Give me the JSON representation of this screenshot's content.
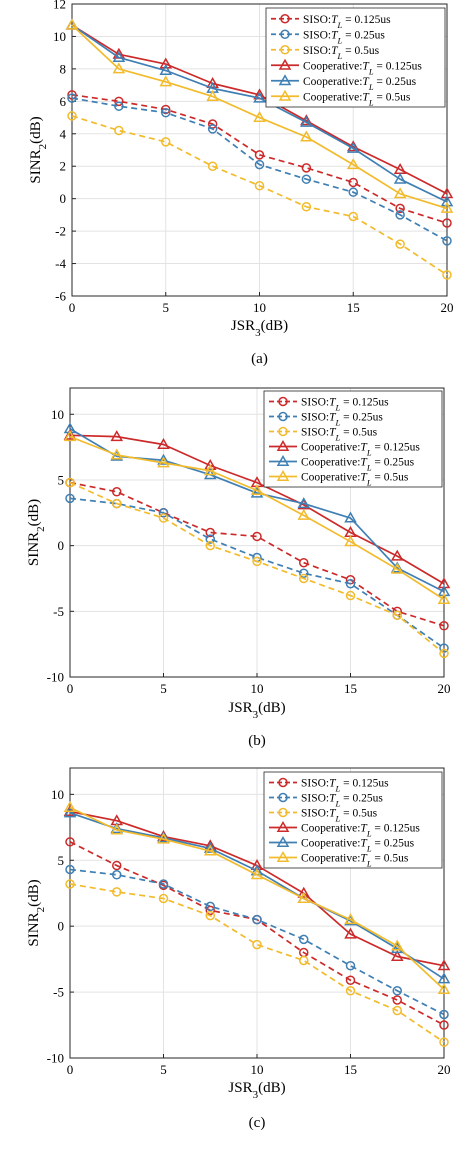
{
  "colors": {
    "red": "#cc2a2a",
    "blue": "#3f7fb3",
    "yellow": "#f2bb2c",
    "grid": "#e3e3e3"
  },
  "legend": [
    {
      "label": "SISO:T_L = 0.125us",
      "style": "dashed-circle",
      "color": "red"
    },
    {
      "label": "SISO:T_L = 0.25us",
      "style": "dashed-circle",
      "color": "blue"
    },
    {
      "label": "SISO:T_L = 0.5us",
      "style": "dashed-circle",
      "color": "yellow"
    },
    {
      "label": "Cooperative:T_L = 0.125us",
      "style": "solid-triangle",
      "color": "red"
    },
    {
      "label": "Cooperative:T_L = 0.25us",
      "style": "solid-triangle",
      "color": "blue"
    },
    {
      "label": "Cooperative:T_L = 0.5us",
      "style": "solid-triangle",
      "color": "yellow"
    }
  ],
  "chart_data": [
    {
      "type": "line",
      "caption": "(a)",
      "xlabel": "JSR3(dB)",
      "ylabel": "SINR2(dB)",
      "x": [
        0,
        2.5,
        5,
        7.5,
        10,
        12.5,
        15,
        17.5,
        20
      ],
      "xlim": [
        0,
        20
      ],
      "ylim": [
        -6,
        12
      ],
      "xticks": [
        0,
        5,
        10,
        15,
        20
      ],
      "yticks": [
        -6,
        -4,
        -2,
        0,
        2,
        4,
        6,
        8,
        10,
        12
      ],
      "grid": true,
      "legend_position": "top-right",
      "series": [
        {
          "name": "SISO:T_L = 0.125us",
          "values": [
            6.4,
            6.0,
            5.5,
            4.6,
            2.7,
            1.9,
            1.0,
            -0.6,
            -1.5
          ]
        },
        {
          "name": "SISO:T_L = 0.25us",
          "values": [
            6.2,
            5.7,
            5.3,
            4.3,
            2.1,
            1.2,
            0.4,
            -1.0,
            -2.6
          ]
        },
        {
          "name": "SISO:T_L = 0.5us",
          "values": [
            5.1,
            4.2,
            3.5,
            2.0,
            0.8,
            -0.5,
            -1.1,
            -2.8,
            -4.7
          ]
        },
        {
          "name": "Cooperative:T_L = 0.125us",
          "values": [
            10.7,
            8.9,
            8.3,
            7.1,
            6.4,
            4.8,
            3.2,
            1.8,
            0.3
          ]
        },
        {
          "name": "Cooperative:T_L = 0.25us",
          "values": [
            10.7,
            8.7,
            7.9,
            6.8,
            6.2,
            4.7,
            3.1,
            1.2,
            -0.2
          ]
        },
        {
          "name": "Cooperative:T_L = 0.5us",
          "values": [
            10.7,
            8.0,
            7.2,
            6.3,
            5.0,
            3.8,
            2.1,
            0.3,
            -0.6
          ]
        }
      ]
    },
    {
      "type": "line",
      "caption": "(b)",
      "xlabel": "JSR3(dB)",
      "ylabel": "SINR2(dB)",
      "x": [
        0,
        2.5,
        5,
        7.5,
        10,
        12.5,
        15,
        17.5,
        20
      ],
      "xlim": [
        0,
        20
      ],
      "ylim": [
        -10,
        12
      ],
      "xticks": [
        0,
        5,
        10,
        15,
        20
      ],
      "yticks": [
        -10,
        -5,
        0,
        5,
        10
      ],
      "grid": true,
      "legend_position": "top-right",
      "series": [
        {
          "name": "SISO:T_L = 0.125us",
          "values": [
            4.8,
            4.1,
            2.5,
            1.0,
            0.7,
            -1.3,
            -2.6,
            -5.0,
            -6.1
          ]
        },
        {
          "name": "SISO:T_L = 0.25us",
          "values": [
            3.6,
            3.2,
            2.5,
            0.5,
            -0.9,
            -2.1,
            -2.9,
            -5.3,
            -7.8
          ]
        },
        {
          "name": "SISO:T_L = 0.5us",
          "values": [
            4.8,
            3.2,
            2.1,
            0.0,
            -1.2,
            -2.5,
            -3.8,
            -5.3,
            -8.2
          ]
        },
        {
          "name": "Cooperative:T_L = 0.125us",
          "values": [
            8.4,
            8.3,
            7.7,
            6.1,
            4.8,
            3.1,
            1.0,
            -0.8,
            -2.9
          ]
        },
        {
          "name": "Cooperative:T_L = 0.25us",
          "values": [
            8.9,
            6.8,
            6.5,
            5.4,
            4.0,
            3.2,
            2.1,
            -1.7,
            -3.5
          ]
        },
        {
          "name": "Cooperative:T_L = 0.5us",
          "values": [
            8.3,
            6.9,
            6.3,
            5.7,
            4.2,
            2.3,
            0.3,
            -1.8,
            -4.1
          ]
        }
      ]
    },
    {
      "type": "line",
      "caption": "(c)",
      "xlabel": "JSR3(dB)",
      "ylabel": "SINR2(dB)",
      "x": [
        0,
        2.5,
        5,
        7.5,
        10,
        12.5,
        15,
        17.5,
        20
      ],
      "xlim": [
        0,
        20
      ],
      "ylim": [
        -10,
        12
      ],
      "xticks": [
        0,
        5,
        10,
        15,
        20
      ],
      "yticks": [
        -10,
        -5,
        0,
        5,
        10
      ],
      "grid": true,
      "legend_position": "top-right",
      "series": [
        {
          "name": "SISO:T_L = 0.125us",
          "values": [
            6.4,
            4.6,
            3.1,
            1.2,
            0.5,
            -2.0,
            -4.1,
            -5.6,
            -7.5
          ]
        },
        {
          "name": "SISO:T_L = 0.25us",
          "values": [
            4.3,
            3.9,
            3.2,
            1.5,
            0.5,
            -1.0,
            -3.0,
            -4.9,
            -6.7
          ]
        },
        {
          "name": "SISO:T_L = 0.5us",
          "values": [
            3.2,
            2.6,
            2.1,
            0.8,
            -1.4,
            -2.6,
            -4.9,
            -6.4,
            -8.8
          ]
        },
        {
          "name": "Cooperative:T_L = 0.125us",
          "values": [
            8.7,
            8.0,
            6.8,
            6.1,
            4.6,
            2.5,
            -0.6,
            -2.3,
            -3.0
          ]
        },
        {
          "name": "Cooperative:T_L = 0.25us",
          "values": [
            8.6,
            7.4,
            6.7,
            5.9,
            4.2,
            2.1,
            0.4,
            -1.7,
            -4.0
          ]
        },
        {
          "name": "Cooperative:T_L = 0.5us",
          "values": [
            9.0,
            7.3,
            6.6,
            5.7,
            3.9,
            2.1,
            0.5,
            -1.5,
            -4.8
          ]
        }
      ]
    }
  ]
}
